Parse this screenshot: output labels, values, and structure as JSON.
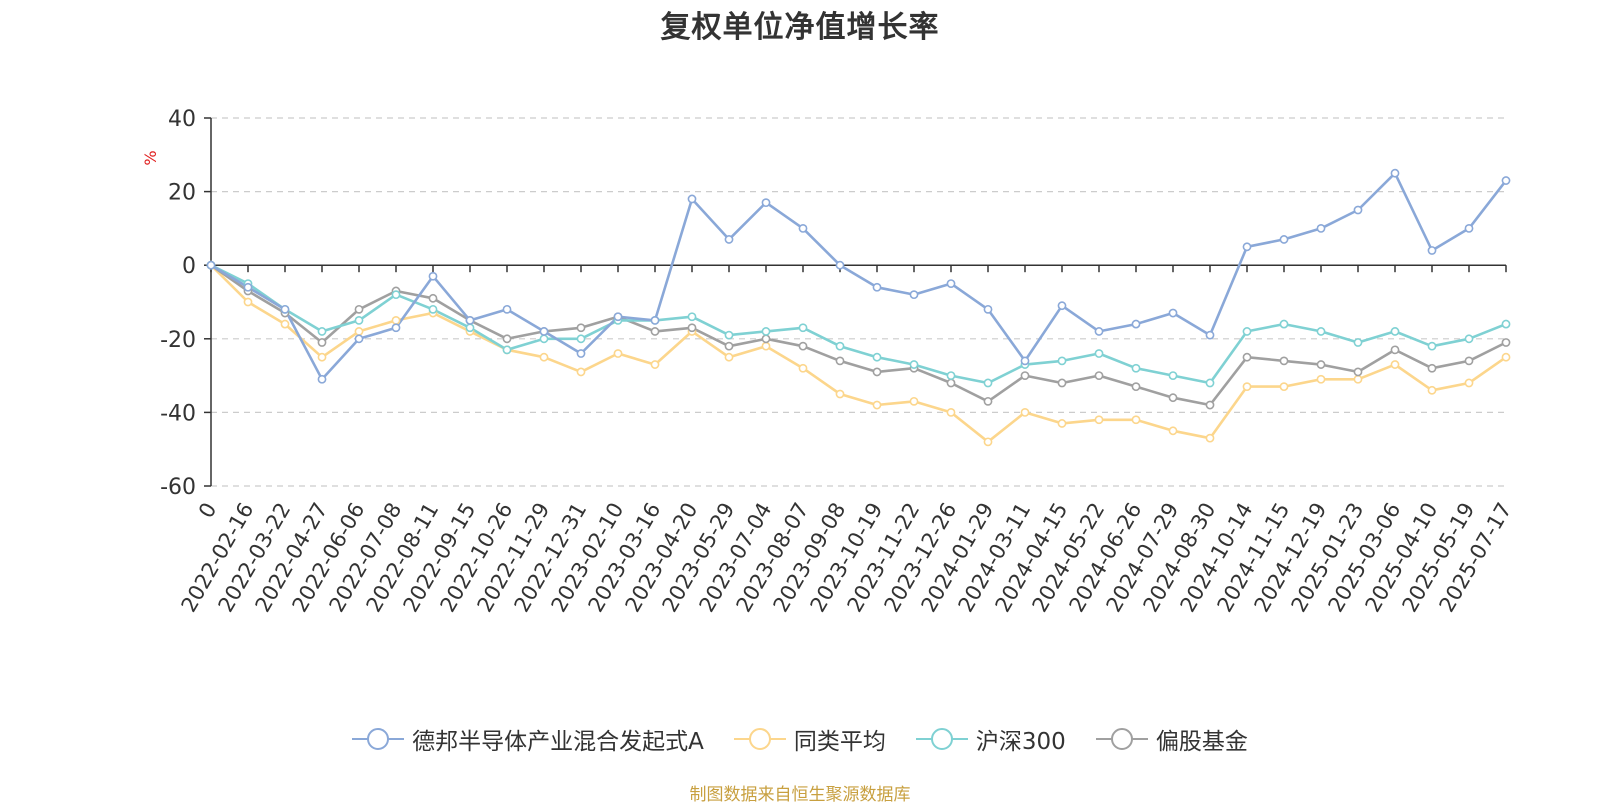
{
  "chart_data": {
    "type": "line",
    "title": "复权单位净值增长率",
    "ylabel": "%",
    "xlabel": "",
    "ylim": [
      -60,
      40
    ],
    "yticks": [
      40,
      20,
      0,
      -20,
      -40,
      -60
    ],
    "grid": true,
    "legend_position": "bottom",
    "x_tick_labels": [
      "0",
      "2022-02-16",
      "2022-03-22",
      "2022-04-27",
      "2022-06-06",
      "2022-07-08",
      "2022-08-11",
      "2022-09-15",
      "2022-10-26",
      "2022-11-29",
      "2022-12-31",
      "2023-02-10",
      "2023-03-16",
      "2023-04-20",
      "2023-05-29",
      "2023-07-04",
      "2023-08-07",
      "2023-09-08",
      "2023-10-19",
      "2023-11-22",
      "2023-12-26",
      "2024-01-29",
      "2024-03-11",
      "2024-04-15",
      "2024-05-22",
      "2024-06-26",
      "2024-07-29",
      "2024-08-30",
      "2024-10-14",
      "2024-11-15",
      "2024-12-19",
      "2025-01-23",
      "2025-03-06",
      "2025-04-10",
      "2025-05-19",
      "2025-07-17"
    ],
    "series": [
      {
        "name": "德邦半导体产业混合发起式A",
        "color": "#8aa8d8",
        "values": [
          0,
          -6,
          -12,
          -31,
          -20,
          -17,
          -3,
          -15,
          -12,
          -18,
          -24,
          -14,
          -15,
          18,
          7,
          17,
          10,
          0,
          -6,
          -8,
          -5,
          -12,
          -26,
          -11,
          -18,
          -16,
          -13,
          -19,
          5,
          7,
          10,
          15,
          25,
          4,
          10,
          23
        ]
      },
      {
        "name": "同类平均",
        "color": "#fcd68c",
        "values": [
          0,
          -10,
          -16,
          -25,
          -18,
          -15,
          -13,
          -18,
          -23,
          -25,
          -29,
          -24,
          -27,
          -18,
          -25,
          -22,
          -28,
          -35,
          -38,
          -37,
          -40,
          -48,
          -40,
          -43,
          -42,
          -42,
          -45,
          -47,
          -33,
          -33,
          -31,
          -31,
          -27,
          -34,
          -32,
          -25
        ]
      },
      {
        "name": "沪深300",
        "color": "#7fd1d3",
        "values": [
          0,
          -5,
          -12,
          -18,
          -15,
          -8,
          -12,
          -17,
          -23,
          -20,
          -20,
          -15,
          -15,
          -14,
          -19,
          -18,
          -17,
          -22,
          -25,
          -27,
          -30,
          -32,
          -27,
          -26,
          -24,
          -28,
          -30,
          -32,
          -18,
          -16,
          -18,
          -21,
          -18,
          -22,
          -20,
          -16
        ]
      },
      {
        "name": "偏股基金",
        "color": "#a0a0a0",
        "values": [
          0,
          -7,
          -13,
          -21,
          -12,
          -7,
          -9,
          -15,
          -20,
          -18,
          -17,
          -14,
          -18,
          -17,
          -22,
          -20,
          -22,
          -26,
          -29,
          -28,
          -32,
          -37,
          -30,
          -32,
          -30,
          -33,
          -36,
          -38,
          -25,
          -26,
          -27,
          -29,
          -23,
          -28,
          -26,
          -21
        ]
      }
    ]
  },
  "source_text": "制图数据来自恒生聚源数据库"
}
